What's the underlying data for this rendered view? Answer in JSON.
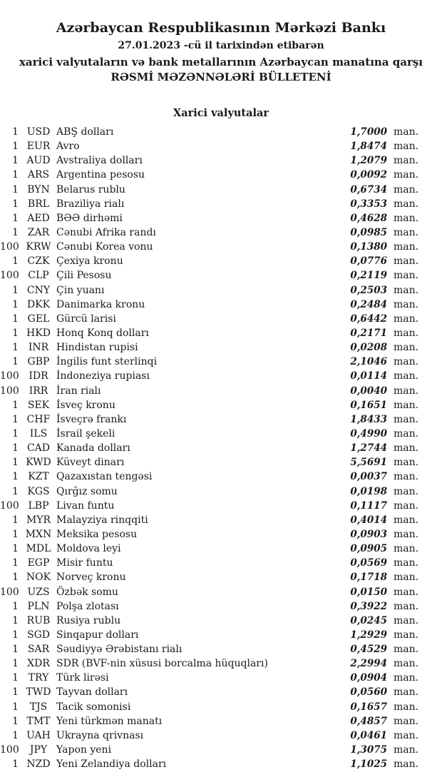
{
  "page": {
    "title": "Azərbaycan Respublikasının Mərkəzi Bankı",
    "date_line": "27.01.2023 -cü il tarixindən etibarən",
    "subtitle": "xarici valyutaların və bank metallarının Azərbaycan manatına qarşı",
    "bulletin_title": "RƏSMİ MƏZƏNNƏLƏRİ BÜLLETENİ"
  },
  "section": {
    "title": "Xarici valyutalar"
  },
  "rates": {
    "unit_label": "man.",
    "rows": [
      {
        "qty": "1",
        "code": "USD",
        "name": "ABŞ dolları",
        "rate": "1,7000"
      },
      {
        "qty": "1",
        "code": "EUR",
        "name": "Avro",
        "rate": "1,8474"
      },
      {
        "qty": "1",
        "code": "AUD",
        "name": "Avstraliya dolları",
        "rate": "1,2079"
      },
      {
        "qty": "1",
        "code": "ARS",
        "name": "Argentina pesosu",
        "rate": "0,0092"
      },
      {
        "qty": "1",
        "code": "BYN",
        "name": "Belarus rublu",
        "rate": "0,6734"
      },
      {
        "qty": "1",
        "code": "BRL",
        "name": "Braziliya rialı",
        "rate": "0,3353"
      },
      {
        "qty": "1",
        "code": "AED",
        "name": "BƏƏ dirhəmi",
        "rate": "0,4628"
      },
      {
        "qty": "1",
        "code": "ZAR",
        "name": "Cənubi Afrika randı",
        "rate": "0,0985"
      },
      {
        "qty": "100",
        "code": "KRW",
        "name": "Cənubi Korea vonu",
        "rate": "0,1380"
      },
      {
        "qty": "1",
        "code": "CZK",
        "name": "Çexiya kronu",
        "rate": "0,0776"
      },
      {
        "qty": "100",
        "code": "CLP",
        "name": "Çili Pesosu",
        "rate": "0,2119"
      },
      {
        "qty": "1",
        "code": "CNY",
        "name": "Çin yuanı",
        "rate": "0,2503"
      },
      {
        "qty": "1",
        "code": "DKK",
        "name": "Danimarka kronu",
        "rate": "0,2484"
      },
      {
        "qty": "1",
        "code": "GEL",
        "name": "Gürcü larisi",
        "rate": "0,6442"
      },
      {
        "qty": "1",
        "code": "HKD",
        "name": "Honq Konq dolları",
        "rate": "0,2171"
      },
      {
        "qty": "1",
        "code": "INR",
        "name": "Hindistan rupisi",
        "rate": "0,0208"
      },
      {
        "qty": "1",
        "code": "GBP",
        "name": "İngilis funt sterlinqi",
        "rate": "2,1046"
      },
      {
        "qty": "100",
        "code": "IDR",
        "name": "İndoneziya rupiası",
        "rate": "0,0114"
      },
      {
        "qty": "100",
        "code": "IRR",
        "name": "İran rialı",
        "rate": "0,0040"
      },
      {
        "qty": "1",
        "code": "SEK",
        "name": "İsveç kronu",
        "rate": "0,1651"
      },
      {
        "qty": "1",
        "code": "CHF",
        "name": "İsveçrə frankı",
        "rate": "1,8433"
      },
      {
        "qty": "1",
        "code": "ILS",
        "name": "İsrail şekeli",
        "rate": "0,4990"
      },
      {
        "qty": "1",
        "code": "CAD",
        "name": "Kanada dolları",
        "rate": "1,2744"
      },
      {
        "qty": "1",
        "code": "KWD",
        "name": "Küveyt dinarı",
        "rate": "5,5691"
      },
      {
        "qty": "1",
        "code": "KZT",
        "name": "Qazaxıstan tengəsi",
        "rate": "0,0037"
      },
      {
        "qty": "1",
        "code": "KGS",
        "name": "Qırğız somu",
        "rate": "0,0198"
      },
      {
        "qty": "100",
        "code": "LBP",
        "name": "Livan funtu",
        "rate": "0,1117"
      },
      {
        "qty": "1",
        "code": "MYR",
        "name": "Malayziya rinqqiti",
        "rate": "0,4014"
      },
      {
        "qty": "1",
        "code": "MXN",
        "name": "Meksika pesosu",
        "rate": "0,0903"
      },
      {
        "qty": "1",
        "code": "MDL",
        "name": "Moldova leyi",
        "rate": "0,0905"
      },
      {
        "qty": "1",
        "code": "EGP",
        "name": "Misir funtu",
        "rate": "0,0569"
      },
      {
        "qty": "1",
        "code": "NOK",
        "name": "Norveç kronu",
        "rate": "0,1718"
      },
      {
        "qty": "100",
        "code": "UZS",
        "name": "Özbək somu",
        "rate": "0,0150"
      },
      {
        "qty": "1",
        "code": "PLN",
        "name": "Polşa zlotası",
        "rate": "0,3922"
      },
      {
        "qty": "1",
        "code": "RUB",
        "name": "Rusiya rublu",
        "rate": "0,0245"
      },
      {
        "qty": "1",
        "code": "SGD",
        "name": "Sinqapur dolları",
        "rate": "1,2929"
      },
      {
        "qty": "1",
        "code": "SAR",
        "name": "Səudiyyə Ərəbistanı rialı",
        "rate": "0,4529"
      },
      {
        "qty": "1",
        "code": "XDR",
        "name": "SDR (BVF-nin xüsusi borcalma hüquqları)",
        "rate": "2,2994"
      },
      {
        "qty": "1",
        "code": "TRY",
        "name": "Türk lirəsi",
        "rate": "0,0904"
      },
      {
        "qty": "1",
        "code": "TWD",
        "name": "Tayvan dolları",
        "rate": "0,0560"
      },
      {
        "qty": "1",
        "code": "TJS",
        "name": "Tacik somonisi",
        "rate": "0,1657"
      },
      {
        "qty": "1",
        "code": "TMT",
        "name": "Yeni türkmən manatı",
        "rate": "0,4857"
      },
      {
        "qty": "1",
        "code": "UAH",
        "name": "Ukrayna qrivnası",
        "rate": "0,0461"
      },
      {
        "qty": "100",
        "code": "JPY",
        "name": "Yapon yeni",
        "rate": "1,3075"
      },
      {
        "qty": "1",
        "code": "NZD",
        "name": "Yeni Zelandiya dolları",
        "rate": "1,1025"
      }
    ]
  }
}
